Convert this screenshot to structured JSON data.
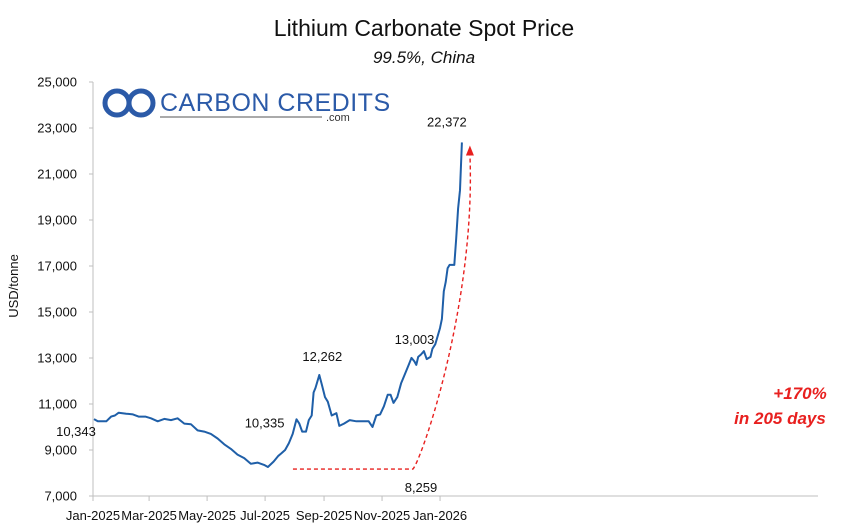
{
  "logo": {
    "name": "CARBON CREDITS",
    "suffix": ".com",
    "color": "#2b5aa8"
  },
  "chart_data": {
    "type": "line",
    "title": "Lithium Carbonate Spot Price",
    "subtitle": "99.5%, China",
    "ylabel": "USD/tonne",
    "xlabel": "",
    "ylim": [
      7000,
      25000
    ],
    "y_ticks": [
      "7,000",
      "9,000",
      "11,000",
      "13,000",
      "15,000",
      "17,000",
      "19,000",
      "21,000",
      "23,000",
      "25,000"
    ],
    "x_ticks": [
      "Jan-2025",
      "Mar-2025",
      "May-2025",
      "Jul-2025",
      "Sep-2025",
      "Nov-2025",
      "Jan-2026"
    ],
    "grid": false,
    "series": [
      {
        "color": "#1f5fa8",
        "points": [
          [
            "2025-01-02",
            10343
          ],
          [
            "2025-01-06",
            10250
          ],
          [
            "2025-01-10",
            10250
          ],
          [
            "2025-01-15",
            10250
          ],
          [
            "2025-01-20",
            10450
          ],
          [
            "2025-01-24",
            10500
          ],
          [
            "2025-01-28",
            10620
          ],
          [
            "2025-02-05",
            10580
          ],
          [
            "2025-02-12",
            10550
          ],
          [
            "2025-02-18",
            10450
          ],
          [
            "2025-02-25",
            10450
          ],
          [
            "2025-03-03",
            10380
          ],
          [
            "2025-03-10",
            10250
          ],
          [
            "2025-03-17",
            10350
          ],
          [
            "2025-03-24",
            10300
          ],
          [
            "2025-03-31",
            10380
          ],
          [
            "2025-04-07",
            10150
          ],
          [
            "2025-04-14",
            10120
          ],
          [
            "2025-04-21",
            9850
          ],
          [
            "2025-04-28",
            9800
          ],
          [
            "2025-05-05",
            9700
          ],
          [
            "2025-05-12",
            9500
          ],
          [
            "2025-05-19",
            9250
          ],
          [
            "2025-05-26",
            9050
          ],
          [
            "2025-06-02",
            8800
          ],
          [
            "2025-06-09",
            8650
          ],
          [
            "2025-06-16",
            8400
          ],
          [
            "2025-06-23",
            8450
          ],
          [
            "2025-06-30",
            8350
          ],
          [
            "2025-07-04",
            8259
          ],
          [
            "2025-07-10",
            8500
          ],
          [
            "2025-07-15",
            8750
          ],
          [
            "2025-07-18",
            8850
          ],
          [
            "2025-07-22",
            9000
          ],
          [
            "2025-07-26",
            9300
          ],
          [
            "2025-07-30",
            9700
          ],
          [
            "2025-08-03",
            10335
          ],
          [
            "2025-08-06",
            10150
          ],
          [
            "2025-08-09",
            9800
          ],
          [
            "2025-08-13",
            9800
          ],
          [
            "2025-08-16",
            10300
          ],
          [
            "2025-08-19",
            10500
          ],
          [
            "2025-08-21",
            11500
          ],
          [
            "2025-08-23",
            11700
          ],
          [
            "2025-08-27",
            12262
          ],
          [
            "2025-08-30",
            11800
          ],
          [
            "2025-09-02",
            11300
          ],
          [
            "2025-09-05",
            11100
          ],
          [
            "2025-09-09",
            10500
          ],
          [
            "2025-09-14",
            10600
          ],
          [
            "2025-09-17",
            10050
          ],
          [
            "2025-09-22",
            10150
          ],
          [
            "2025-09-28",
            10300
          ],
          [
            "2025-10-05",
            10250
          ],
          [
            "2025-10-12",
            10250
          ],
          [
            "2025-10-18",
            10250
          ],
          [
            "2025-10-22",
            10000
          ],
          [
            "2025-10-26",
            10500
          ],
          [
            "2025-10-30",
            10550
          ],
          [
            "2025-11-03",
            10900
          ],
          [
            "2025-11-07",
            11400
          ],
          [
            "2025-11-10",
            11400
          ],
          [
            "2025-11-13",
            11050
          ],
          [
            "2025-11-17",
            11300
          ],
          [
            "2025-11-21",
            11900
          ],
          [
            "2025-11-25",
            12300
          ],
          [
            "2025-11-29",
            12700
          ],
          [
            "2025-12-02",
            13003
          ],
          [
            "2025-12-05",
            12850
          ],
          [
            "2025-12-07",
            12700
          ],
          [
            "2025-12-09",
            13050
          ],
          [
            "2025-12-12",
            13150
          ],
          [
            "2025-12-15",
            13300
          ],
          [
            "2025-12-18",
            12950
          ],
          [
            "2025-12-22",
            13050
          ],
          [
            "2025-12-24",
            13400
          ],
          [
            "2025-12-27",
            13600
          ],
          [
            "2026-01-01",
            14300
          ],
          [
            "2026-01-03",
            14700
          ],
          [
            "2026-01-05",
            15900
          ],
          [
            "2026-01-07",
            16300
          ],
          [
            "2026-01-09",
            16900
          ],
          [
            "2026-01-11",
            17050
          ],
          [
            "2026-01-13",
            17050
          ],
          [
            "2026-01-16",
            17050
          ],
          [
            "2026-01-18",
            18200
          ],
          [
            "2026-01-20",
            19500
          ],
          [
            "2026-01-22",
            20300
          ],
          [
            "2026-01-24",
            22372
          ]
        ]
      }
    ],
    "annotations": [
      {
        "text": "10,343",
        "x": "2025-01-02",
        "y": 10343,
        "anchor": "below-left"
      },
      {
        "text": "8,259",
        "x": "2025-07-04",
        "y": 8259,
        "anchor": "below-left"
      },
      {
        "text": "10,335",
        "x": "2025-08-03",
        "y": 10335,
        "anchor": "left"
      },
      {
        "text": "12,262",
        "x": "2025-08-27",
        "y": 12262,
        "anchor": "above"
      },
      {
        "text": "13,003",
        "x": "2025-12-02",
        "y": 13003,
        "anchor": "above"
      },
      {
        "text": "22,372",
        "x": "2026-01-24",
        "y": 22372,
        "anchor": "above-left"
      }
    ],
    "callout": {
      "line1": "+170%",
      "line2": "in 205 days",
      "color": "#e8201f"
    }
  }
}
